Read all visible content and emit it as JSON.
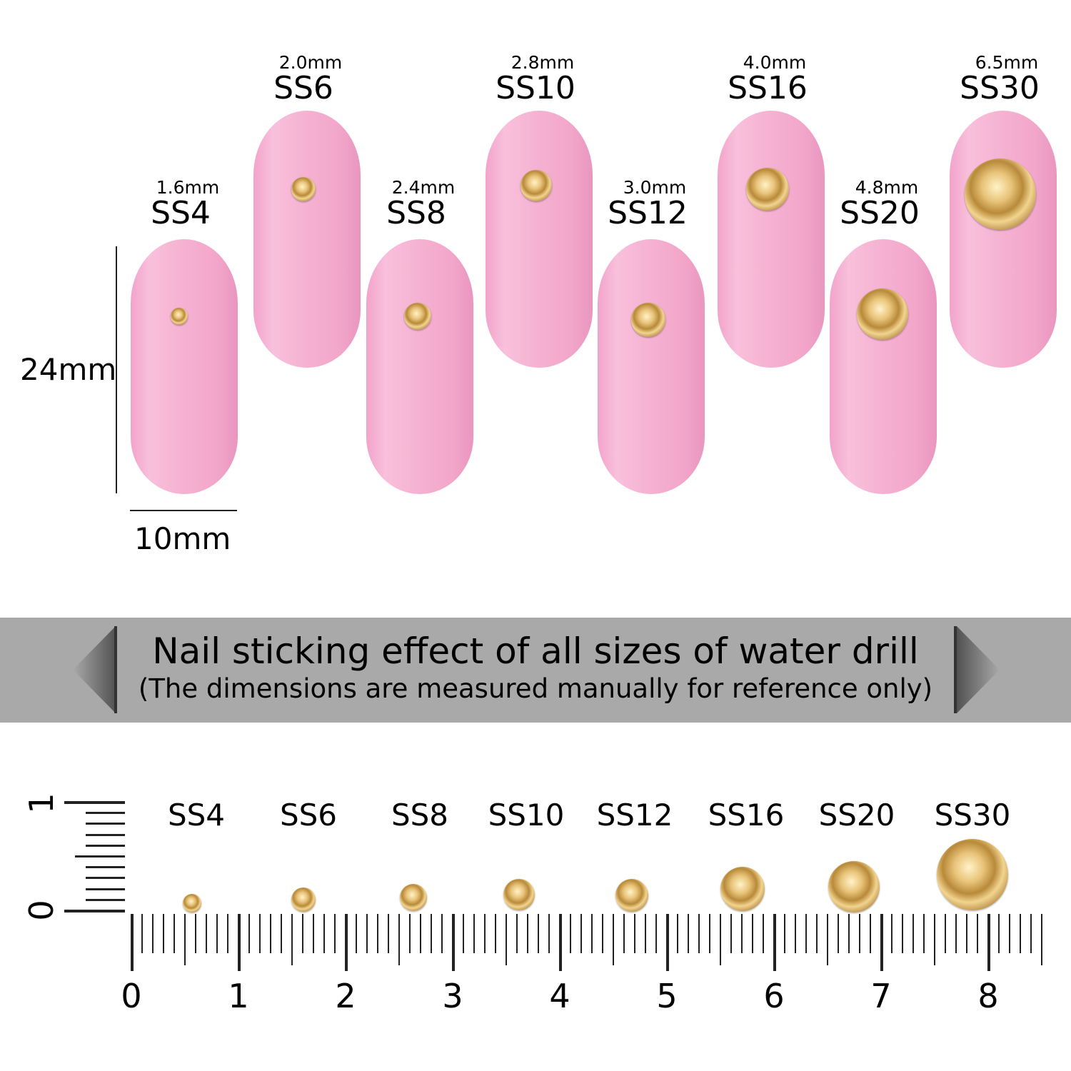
{
  "nails": [
    {
      "size": "SS4",
      "mm": "1.6mm",
      "row": "lower"
    },
    {
      "size": "SS6",
      "mm": "2.0mm",
      "row": "upper"
    },
    {
      "size": "SS8",
      "mm": "2.4mm",
      "row": "lower"
    },
    {
      "size": "SS10",
      "mm": "2.8mm",
      "row": "upper"
    },
    {
      "size": "SS12",
      "mm": "3.0mm",
      "row": "lower"
    },
    {
      "size": "SS16",
      "mm": "4.0mm",
      "row": "upper"
    },
    {
      "size": "SS20",
      "mm": "4.8mm",
      "row": "lower"
    },
    {
      "size": "SS30",
      "mm": "6.5mm",
      "row": "upper"
    }
  ],
  "dimensions": {
    "height": "24mm",
    "width": "10mm"
  },
  "banner": {
    "title": "Nail sticking effect of all sizes of water drill",
    "subtitle": "(The dimensions are measured manually for reference only)"
  },
  "ruler": {
    "labels": [
      "SS4",
      "SS6",
      "SS8",
      "SS10",
      "SS12",
      "SS16",
      "SS20",
      "SS30"
    ],
    "numbers": [
      "0",
      "1",
      "2",
      "3",
      "4",
      "5",
      "6",
      "7",
      "8"
    ],
    "vertical_numbers": [
      "0",
      "1"
    ]
  },
  "colors": {
    "nail": "#f6b3d3",
    "banner": "#a9a9a9",
    "gem": "#d9a95a"
  }
}
